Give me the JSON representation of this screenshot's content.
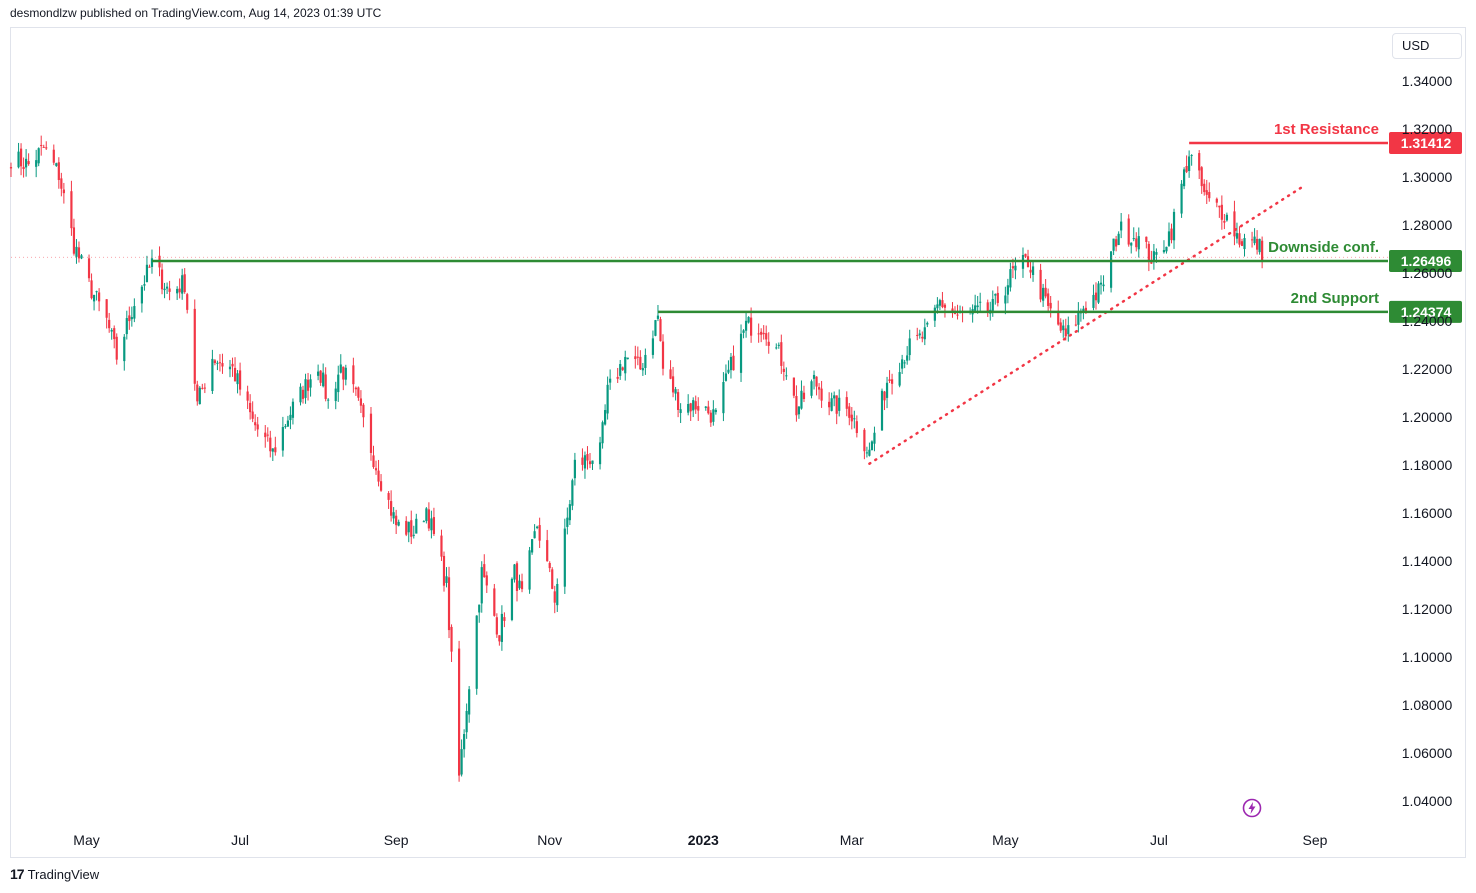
{
  "header": {
    "text": "desmondlzw published on TradingView.com, Aug 14, 2023 01:39 UTC"
  },
  "currency": "USD",
  "footer": {
    "logo": "17",
    "brand": "TradingView"
  },
  "colors": {
    "up": "#089981",
    "down": "#f23645",
    "resistance": "#f23645",
    "support": "#2e8b34",
    "trend": "#f23645",
    "axis_text": "#131722",
    "bolt": "#9c27b0"
  },
  "chart_data": {
    "type": "candlestick",
    "title": "",
    "xlabel": "",
    "ylabel": "",
    "y_range": [
      1.03,
      1.362
    ],
    "x_range": [
      "2022-04-01",
      "2023-09-30"
    ],
    "y_ticks": [
      "1.34000",
      "1.32000",
      "1.30000",
      "1.28000",
      "1.26000",
      "1.24000",
      "1.22000",
      "1.20000",
      "1.18000",
      "1.16000",
      "1.14000",
      "1.12000",
      "1.10000",
      "1.08000",
      "1.06000",
      "1.04000"
    ],
    "x_ticks": [
      {
        "label": "May",
        "date": "2022-05-01",
        "bold": false
      },
      {
        "label": "Jul",
        "date": "2022-07-01",
        "bold": false
      },
      {
        "label": "Sep",
        "date": "2022-09-01",
        "bold": false
      },
      {
        "label": "Nov",
        "date": "2022-11-01",
        "bold": false
      },
      {
        "label": "2023",
        "date": "2023-01-01",
        "bold": true
      },
      {
        "label": "Mar",
        "date": "2023-03-01",
        "bold": false
      },
      {
        "label": "May",
        "date": "2023-05-01",
        "bold": false
      },
      {
        "label": "Jul",
        "date": "2023-07-01",
        "bold": false
      },
      {
        "label": "Sep",
        "date": "2023-09-01",
        "bold": false
      }
    ],
    "levels": [
      {
        "name": "1st Resistance",
        "value": 1.31412,
        "price_label": "1.31412",
        "start": "2023-07-13",
        "color": "#f23645"
      },
      {
        "name": "Downside conf.",
        "value": 1.26496,
        "price_label": "1.26496",
        "start": "2022-05-27",
        "color": "#2e8b34"
      },
      {
        "name": "2nd Support",
        "value": 1.24374,
        "price_label": "1.24374",
        "start": "2022-12-14",
        "color": "#2e8b34"
      }
    ],
    "trendline": {
      "start": {
        "date": "2023-03-08",
        "value": 1.1805
      },
      "end": {
        "date": "2023-08-28",
        "value": 1.2965
      },
      "style": "dotted"
    },
    "last_price_line": 1.2665,
    "anchors": [
      [
        "2022-04-01",
        1.308
      ],
      [
        "2022-04-08",
        1.305
      ],
      [
        "2022-04-14",
        1.312
      ],
      [
        "2022-04-20",
        1.301
      ],
      [
        "2022-04-26",
        1.272
      ],
      [
        "2022-05-02",
        1.255
      ],
      [
        "2022-05-09",
        1.24
      ],
      [
        "2022-05-13",
        1.225
      ],
      [
        "2022-05-20",
        1.248
      ],
      [
        "2022-05-27",
        1.264
      ],
      [
        "2022-06-03",
        1.252
      ],
      [
        "2022-06-09",
        1.256
      ],
      [
        "2022-06-14",
        1.205
      ],
      [
        "2022-06-20",
        1.225
      ],
      [
        "2022-06-28",
        1.22
      ],
      [
        "2022-07-06",
        1.198
      ],
      [
        "2022-07-14",
        1.185
      ],
      [
        "2022-07-20",
        1.2
      ],
      [
        "2022-08-01",
        1.222
      ],
      [
        "2022-08-05",
        1.206
      ],
      [
        "2022-08-10",
        1.221
      ],
      [
        "2022-08-16",
        1.208
      ],
      [
        "2022-08-24",
        1.18
      ],
      [
        "2022-09-01",
        1.155
      ],
      [
        "2022-09-08",
        1.152
      ],
      [
        "2022-09-13",
        1.162
      ],
      [
        "2022-09-21",
        1.13
      ],
      [
        "2022-09-26",
        1.05
      ],
      [
        "2022-09-29",
        1.08
      ],
      [
        "2022-10-05",
        1.135
      ],
      [
        "2022-10-12",
        1.11
      ],
      [
        "2022-10-18",
        1.135
      ],
      [
        "2022-10-21",
        1.125
      ],
      [
        "2022-10-27",
        1.155
      ],
      [
        "2022-11-03",
        1.125
      ],
      [
        "2022-11-07",
        1.15
      ],
      [
        "2022-11-11",
        1.18
      ],
      [
        "2022-11-21",
        1.185
      ],
      [
        "2022-11-24",
        1.21
      ],
      [
        "2022-12-01",
        1.225
      ],
      [
        "2022-12-07",
        1.22
      ],
      [
        "2022-12-14",
        1.242
      ],
      [
        "2022-12-16",
        1.22
      ],
      [
        "2022-12-23",
        1.205
      ],
      [
        "2022-12-30",
        1.205
      ],
      [
        "2023-01-06",
        1.2
      ],
      [
        "2023-01-11",
        1.218
      ],
      [
        "2023-01-18",
        1.238
      ],
      [
        "2023-01-25",
        1.238
      ],
      [
        "2023-02-03",
        1.22
      ],
      [
        "2023-02-07",
        1.203
      ],
      [
        "2023-02-14",
        1.215
      ],
      [
        "2023-02-21",
        1.205
      ],
      [
        "2023-02-28",
        1.203
      ],
      [
        "2023-03-08",
        1.185
      ],
      [
        "2023-03-15",
        1.215
      ],
      [
        "2023-03-23",
        1.228
      ],
      [
        "2023-03-31",
        1.235
      ],
      [
        "2023-04-05",
        1.248
      ],
      [
        "2023-04-12",
        1.242
      ],
      [
        "2023-04-19",
        1.243
      ],
      [
        "2023-04-26",
        1.245
      ],
      [
        "2023-05-04",
        1.26
      ],
      [
        "2023-05-10",
        1.265
      ],
      [
        "2023-05-18",
        1.245
      ],
      [
        "2023-05-25",
        1.233
      ],
      [
        "2023-06-01",
        1.246
      ],
      [
        "2023-06-08",
        1.253
      ],
      [
        "2023-06-15",
        1.278
      ],
      [
        "2023-06-22",
        1.275
      ],
      [
        "2023-06-29",
        1.265
      ],
      [
        "2023-07-06",
        1.278
      ],
      [
        "2023-07-13",
        1.31
      ],
      [
        "2023-07-20",
        1.29
      ],
      [
        "2023-07-27",
        1.285
      ],
      [
        "2023-08-02",
        1.274
      ],
      [
        "2023-08-09",
        1.272
      ],
      [
        "2023-08-11",
        1.269
      ]
    ]
  }
}
